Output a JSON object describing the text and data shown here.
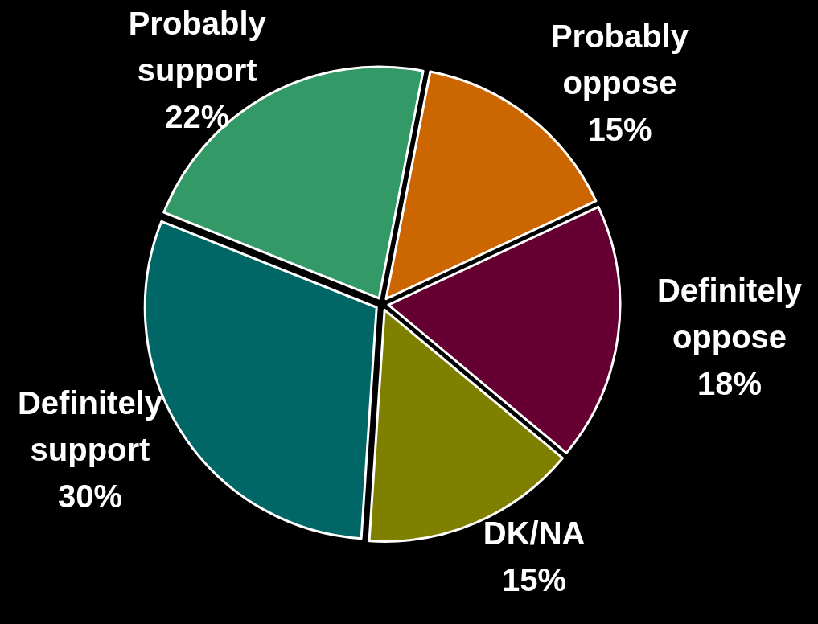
{
  "chart_data": {
    "type": "pie",
    "categories": [
      "Probably oppose",
      "Definitely oppose",
      "DK/NA",
      "Definitely support",
      "Probably support"
    ],
    "values": [
      15,
      18,
      15,
      30,
      22
    ],
    "value_labels": [
      "15%",
      "18%",
      "15%",
      "30%",
      "22%"
    ],
    "colors": [
      "#cc6600",
      "#660033",
      "#808000",
      "#006666",
      "#339966"
    ]
  }
}
